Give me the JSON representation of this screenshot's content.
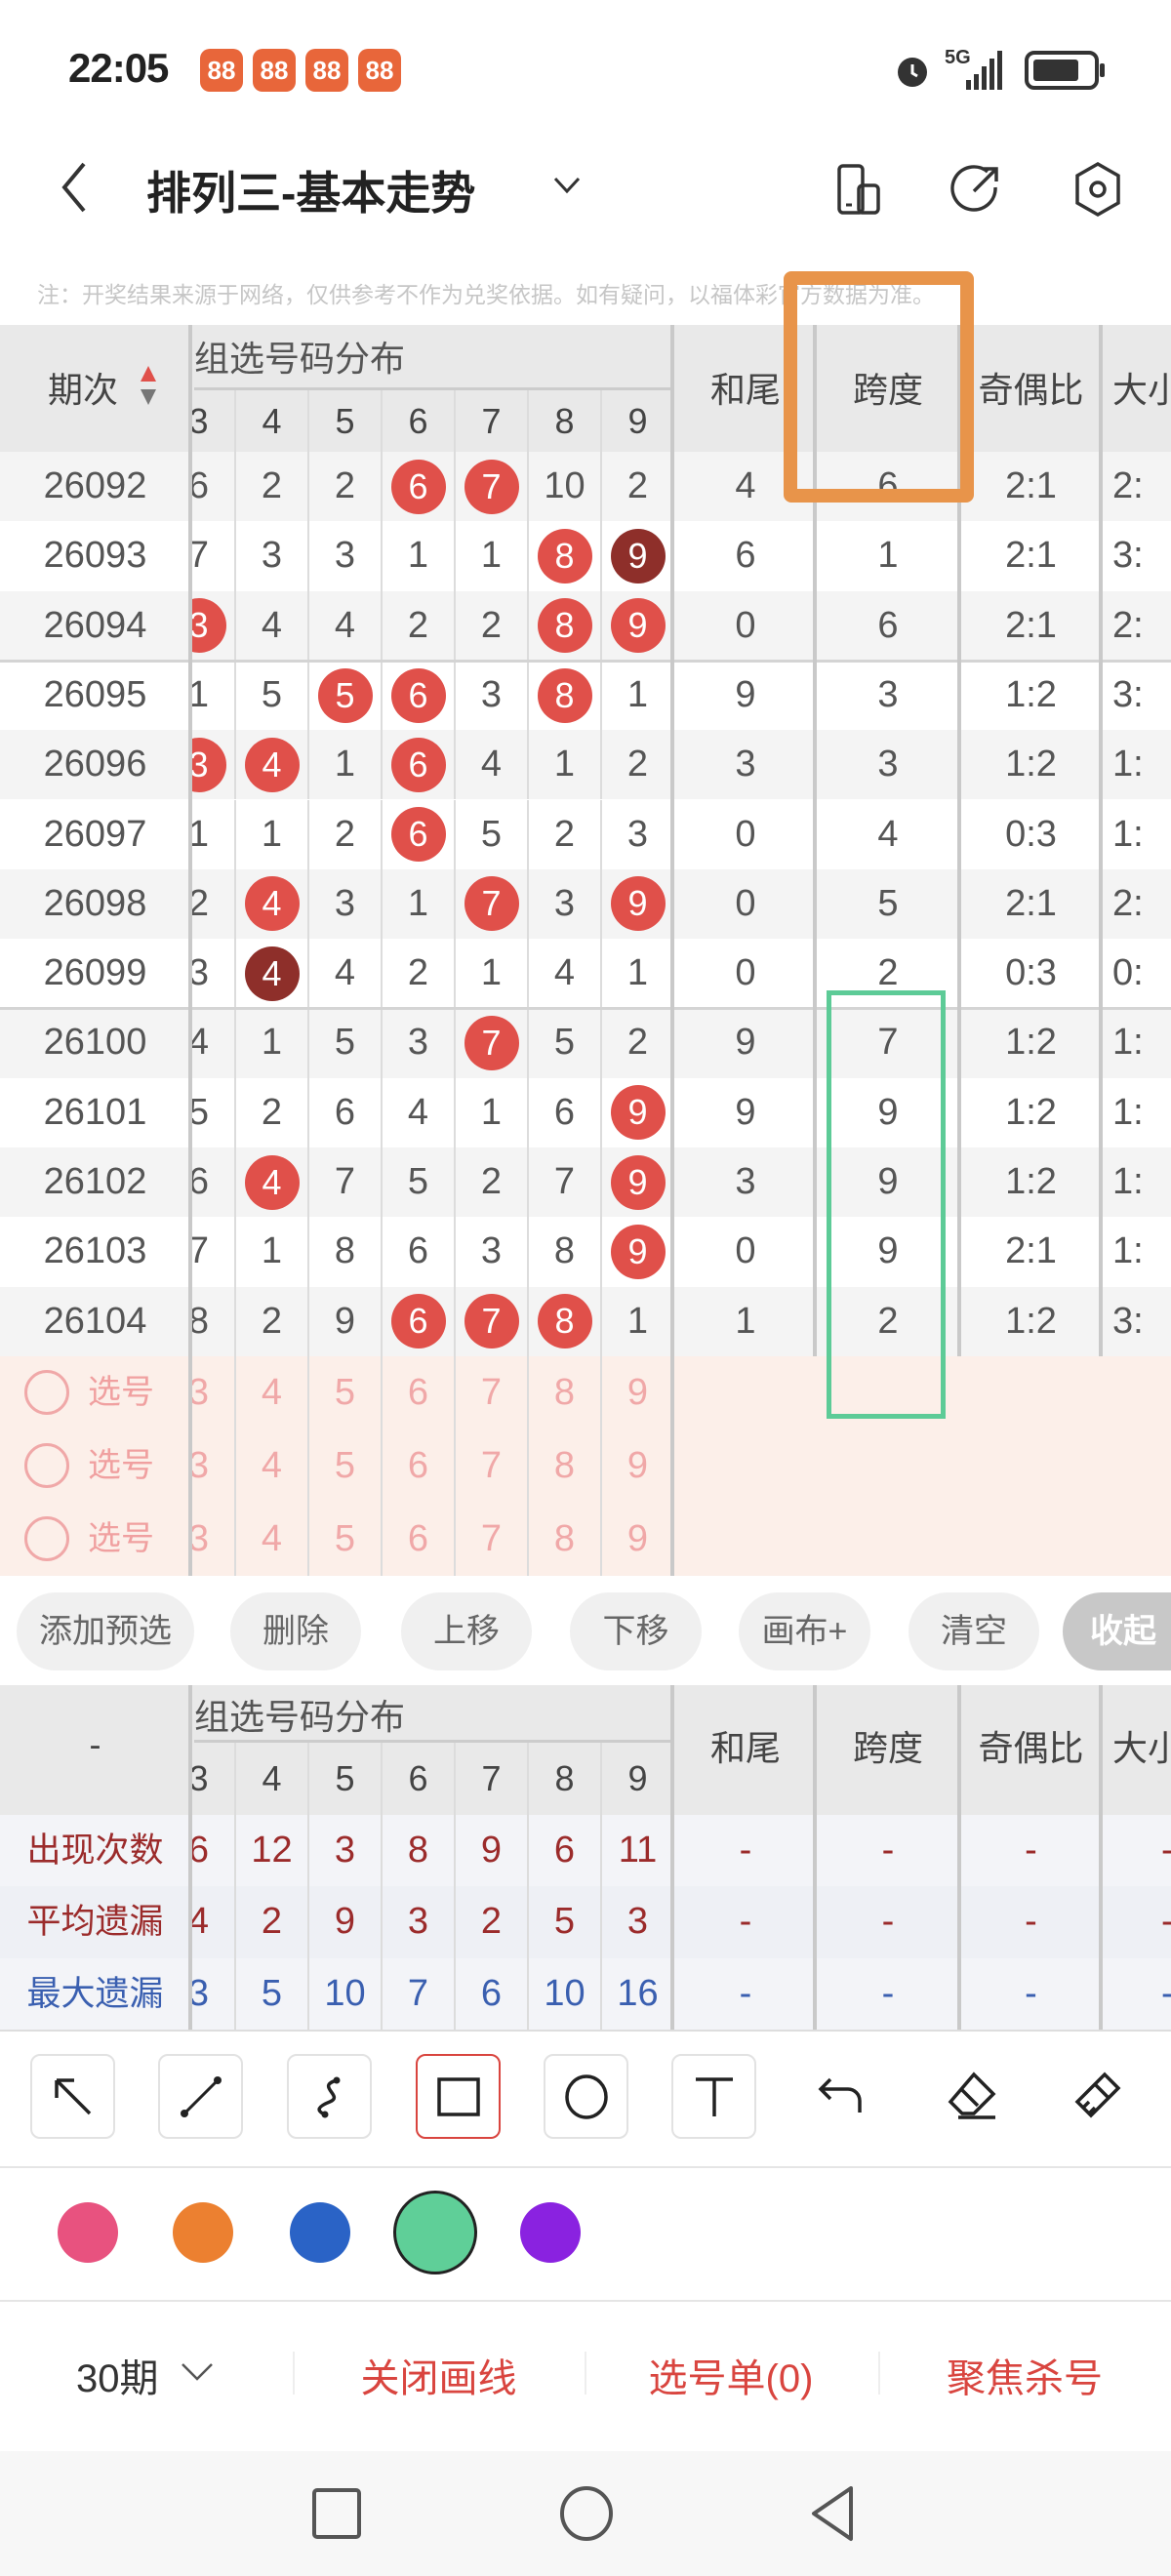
{
  "status_bar": {
    "time": "22:05",
    "app_icons": [
      "88",
      "88",
      "88",
      "88"
    ],
    "network": "5G",
    "icons": [
      "alarm-icon",
      "signal-icon",
      "battery-icon"
    ]
  },
  "header": {
    "title": "排列三-基本走势",
    "icons": [
      "chevron-down-icon",
      "phone-rotate-icon",
      "share-icon",
      "settings-icon"
    ]
  },
  "note": "注：开奖结果来源于网络，仅供参考不作为兑奖依据。如有疑问，以福体彩官方数据为准。",
  "main_table": {
    "period_header": "期次",
    "group_header": "组选号码分布",
    "digit_headers": [
      "3",
      "4",
      "5",
      "6",
      "7",
      "8",
      "9"
    ],
    "extra_headers": [
      "和尾",
      "跨度",
      "奇偶比",
      "大小"
    ],
    "rows": [
      {
        "period": "26092",
        "nums": [
          "6",
          "2",
          "2",
          "6",
          "7",
          "10",
          "2"
        ],
        "hits": [
          "",
          "",
          "",
          "hit",
          "hit",
          "",
          ""
        ],
        "extra": [
          "4",
          "6",
          "2:1",
          "2:"
        ]
      },
      {
        "period": "26093",
        "nums": [
          "7",
          "3",
          "3",
          "1",
          "1",
          "8",
          "9"
        ],
        "hits": [
          "",
          "",
          "",
          "",
          "",
          "hit",
          "repeat"
        ],
        "extra": [
          "6",
          "1",
          "2:1",
          "3:"
        ]
      },
      {
        "period": "26094",
        "nums": [
          "3",
          "4",
          "4",
          "2",
          "2",
          "8",
          "9"
        ],
        "hits": [
          "hit",
          "",
          "",
          "",
          "",
          "hit",
          "hit"
        ],
        "extra": [
          "0",
          "6",
          "2:1",
          "2:"
        ]
      },
      {
        "period": "26095",
        "nums": [
          "1",
          "5",
          "5",
          "6",
          "3",
          "8",
          "1"
        ],
        "hits": [
          "",
          "",
          "hit",
          "hit",
          "",
          "hit",
          ""
        ],
        "extra": [
          "9",
          "3",
          "1:2",
          "3:"
        ]
      },
      {
        "period": "26096",
        "nums": [
          "3",
          "4",
          "1",
          "6",
          "4",
          "1",
          "2"
        ],
        "hits": [
          "hit",
          "hit",
          "",
          "hit",
          "",
          "",
          ""
        ],
        "extra": [
          "3",
          "3",
          "1:2",
          "1:"
        ]
      },
      {
        "period": "26097",
        "nums": [
          "1",
          "1",
          "2",
          "6",
          "5",
          "2",
          "3"
        ],
        "hits": [
          "",
          "",
          "",
          "hit",
          "",
          "",
          ""
        ],
        "extra": [
          "0",
          "4",
          "0:3",
          "1:"
        ]
      },
      {
        "period": "26098",
        "nums": [
          "2",
          "4",
          "3",
          "1",
          "7",
          "3",
          "9"
        ],
        "hits": [
          "",
          "hit",
          "",
          "",
          "hit",
          "",
          "hit"
        ],
        "extra": [
          "0",
          "5",
          "2:1",
          "2:"
        ]
      },
      {
        "period": "26099",
        "nums": [
          "3",
          "4",
          "4",
          "2",
          "1",
          "4",
          "1"
        ],
        "hits": [
          "",
          "repeat",
          "",
          "",
          "",
          "",
          ""
        ],
        "extra": [
          "0",
          "2",
          "0:3",
          "0:"
        ]
      },
      {
        "period": "26100",
        "nums": [
          "4",
          "1",
          "5",
          "3",
          "7",
          "5",
          "2"
        ],
        "hits": [
          "",
          "",
          "",
          "",
          "hit",
          "",
          ""
        ],
        "extra": [
          "9",
          "7",
          "1:2",
          "1:"
        ]
      },
      {
        "period": "26101",
        "nums": [
          "5",
          "2",
          "6",
          "4",
          "1",
          "6",
          "9"
        ],
        "hits": [
          "",
          "",
          "",
          "",
          "",
          "",
          "hit"
        ],
        "extra": [
          "9",
          "9",
          "1:2",
          "1:"
        ]
      },
      {
        "period": "26102",
        "nums": [
          "6",
          "4",
          "7",
          "5",
          "2",
          "7",
          "9"
        ],
        "hits": [
          "",
          "hit",
          "",
          "",
          "",
          "",
          "hit"
        ],
        "extra": [
          "3",
          "9",
          "1:2",
          "1:"
        ]
      },
      {
        "period": "26103",
        "nums": [
          "7",
          "1",
          "8",
          "6",
          "3",
          "8",
          "9"
        ],
        "hits": [
          "",
          "",
          "",
          "",
          "",
          "",
          "hit"
        ],
        "extra": [
          "0",
          "9",
          "2:1",
          "1:"
        ]
      },
      {
        "period": "26104",
        "nums": [
          "8",
          "2",
          "9",
          "6",
          "7",
          "8",
          "1"
        ],
        "hits": [
          "",
          "",
          "",
          "hit",
          "hit",
          "hit",
          ""
        ],
        "extra": [
          "1",
          "2",
          "1:2",
          "3:"
        ]
      }
    ],
    "select_rows": [
      {
        "label": "选号",
        "digits": [
          "3",
          "4",
          "5",
          "6",
          "7",
          "8",
          "9"
        ]
      },
      {
        "label": "选号",
        "digits": [
          "3",
          "4",
          "5",
          "6",
          "7",
          "8",
          "9"
        ]
      },
      {
        "label": "选号",
        "digits": [
          "3",
          "4",
          "5",
          "6",
          "7",
          "8",
          "9"
        ]
      }
    ]
  },
  "action_pills": [
    "添加预选",
    "删除",
    "上移",
    "下移",
    "画布+",
    "清空",
    "收起"
  ],
  "stats_table": {
    "corner": "-",
    "group_header": "组选号码分布",
    "digit_headers": [
      "3",
      "4",
      "5",
      "6",
      "7",
      "8",
      "9"
    ],
    "extra_headers": [
      "和尾",
      "跨度",
      "奇偶比",
      "大小"
    ],
    "rows": [
      {
        "label": "出现次数",
        "color": "#9b2b2b",
        "nums": [
          "6",
          "12",
          "3",
          "8",
          "9",
          "6",
          "11"
        ],
        "extra": [
          "-",
          "-",
          "-",
          "-"
        ]
      },
      {
        "label": "平均遗漏",
        "color": "#9b2b2b",
        "nums": [
          "4",
          "2",
          "9",
          "3",
          "2",
          "5",
          "3"
        ],
        "extra": [
          "-",
          "-",
          "-",
          "-"
        ]
      },
      {
        "label": "最大遗漏",
        "color": "#3a5fb0",
        "nums": [
          "3",
          "5",
          "10",
          "7",
          "6",
          "10",
          "16"
        ],
        "extra": [
          "-",
          "-",
          "-",
          "-"
        ]
      }
    ]
  },
  "drawing_tools": [
    "arrow",
    "line",
    "curve",
    "rectangle",
    "circle",
    "text",
    "undo",
    "eraser",
    "clear-brush"
  ],
  "selected_tool": "rectangle",
  "palette": [
    "#e8527f",
    "#ec8030",
    "#2a63c6",
    "#5fcf98",
    "#8a22e0"
  ],
  "selected_color": "#5fcf98",
  "annotations": {
    "orange_box_color": "#e8944a",
    "green_box_color": "#5dcb97"
  },
  "bottom_bar": {
    "period_select": "30期",
    "close_drawing": "关闭画线",
    "pick_list": "选号单(0)",
    "focus_kill": "聚焦杀号"
  },
  "colors": {
    "ball": "#e0504a",
    "ball_repeat": "#8e2f2a",
    "accent": "#d9453f"
  }
}
